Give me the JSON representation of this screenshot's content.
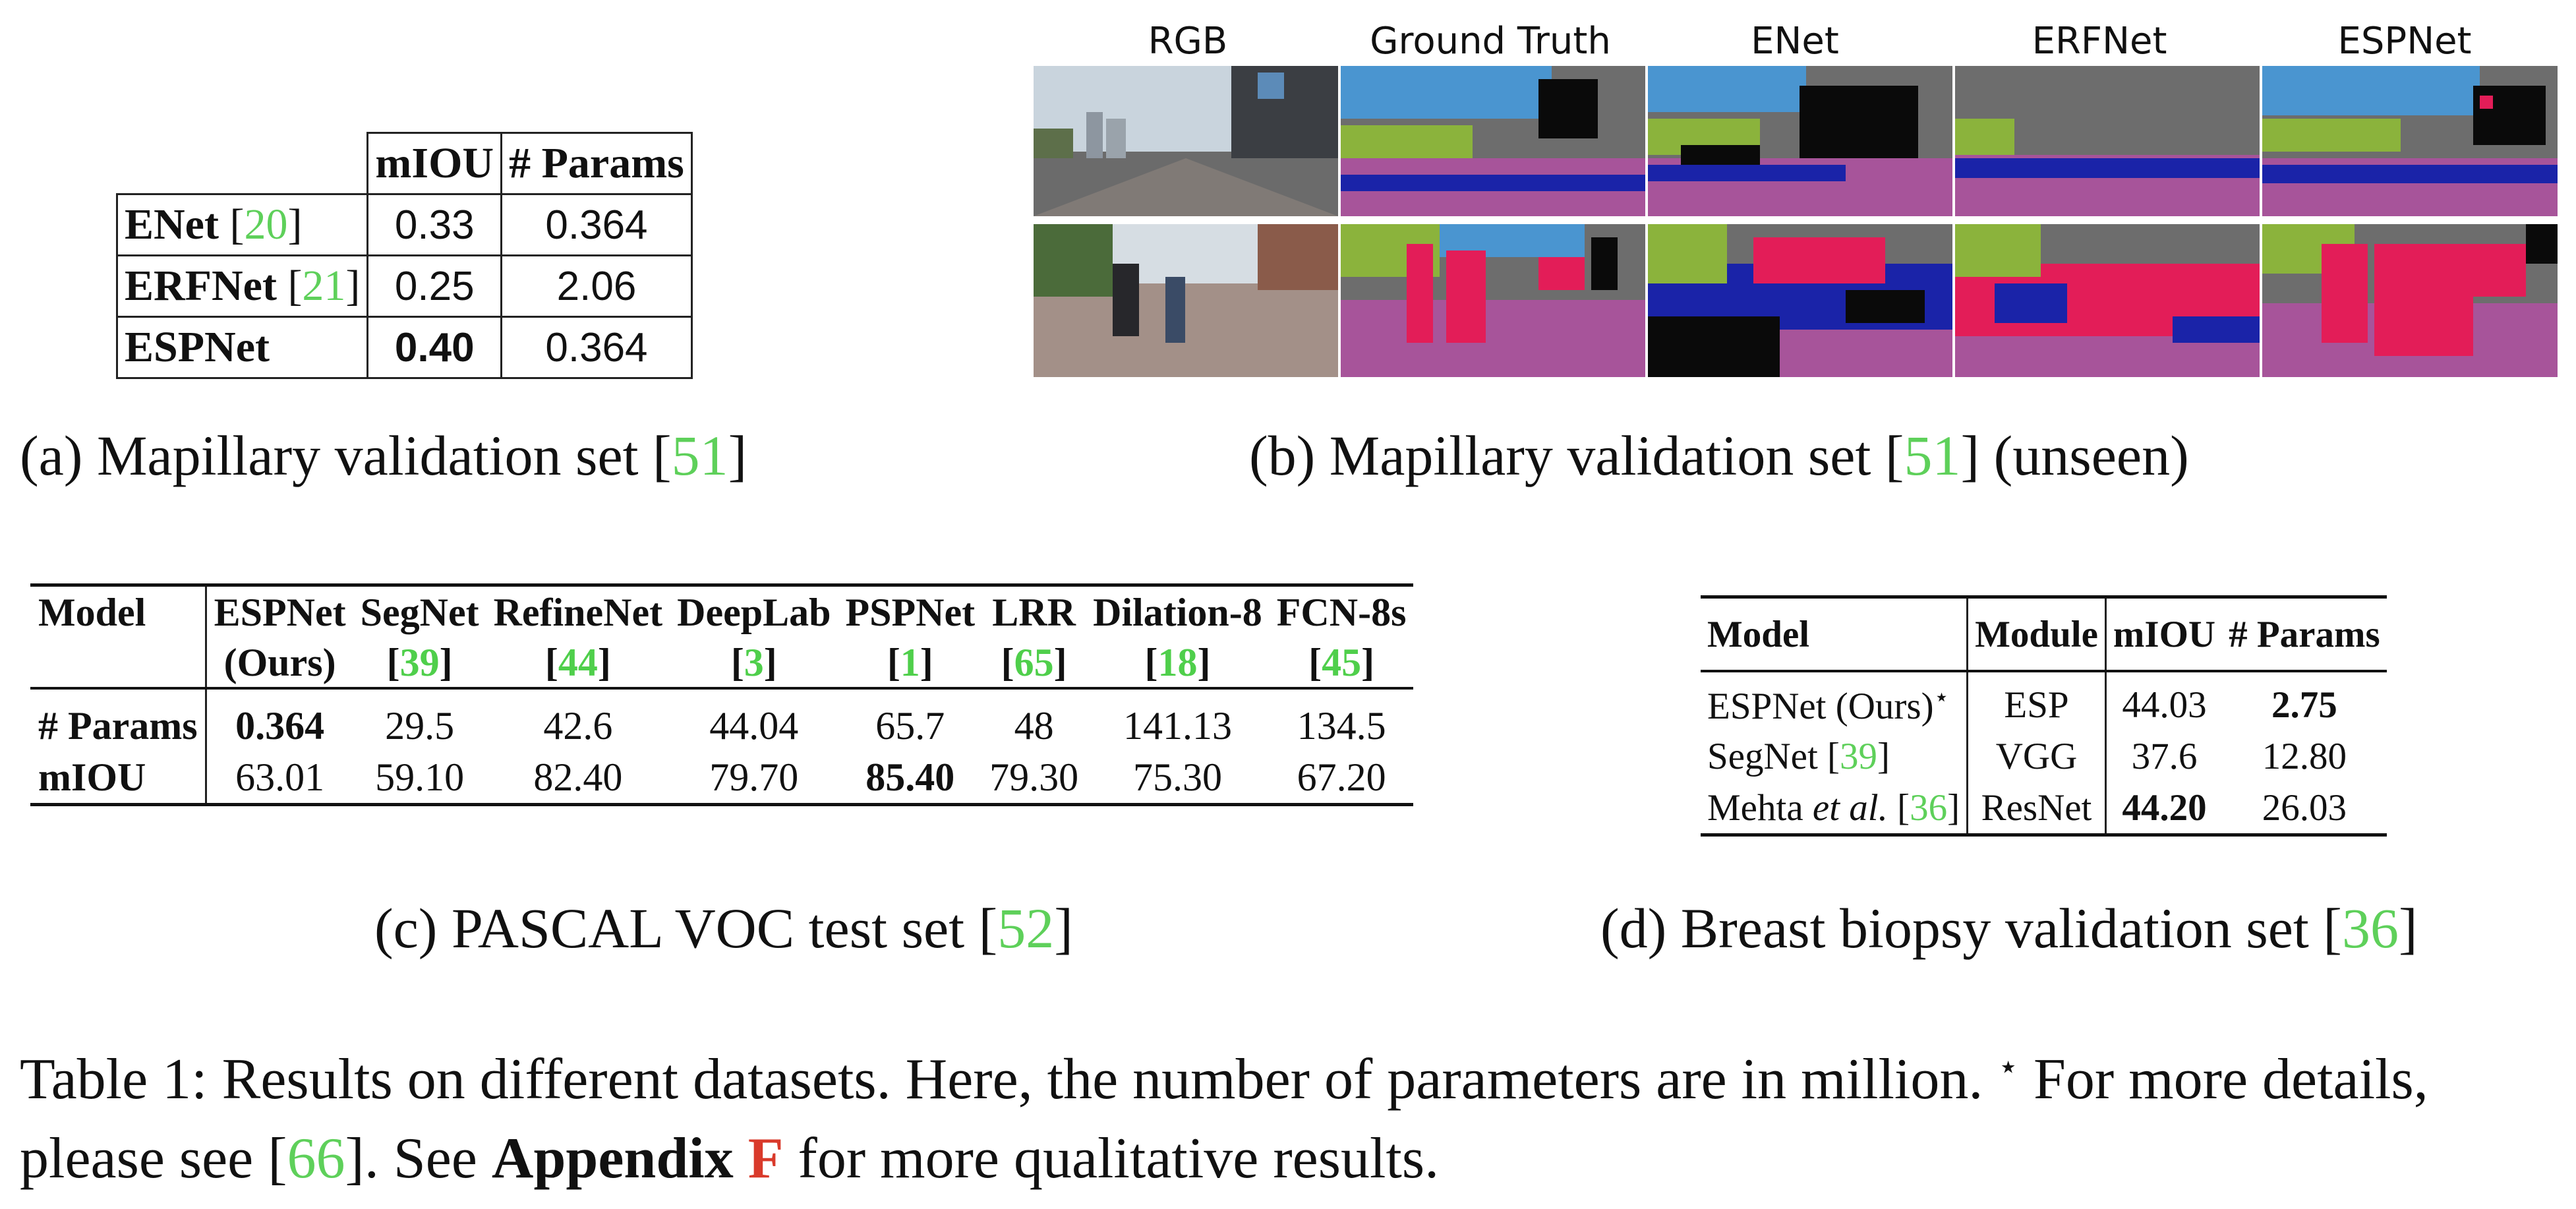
{
  "table_a": {
    "headers": [
      "",
      "mIOU",
      "# Params"
    ],
    "rows": [
      {
        "model": "ENet",
        "ref": "20",
        "miou": "0.33",
        "params": "0.364"
      },
      {
        "model": "ERFNet",
        "ref": "21",
        "miou": "0.25",
        "params": "2.06"
      },
      {
        "model": "ESPNet",
        "ref": "",
        "miou": "0.40",
        "params": "0.364"
      }
    ],
    "caption_prefix": "(a) Mapillary validation set [",
    "caption_ref": "51",
    "caption_suffix": "]"
  },
  "figure_b": {
    "columns": [
      "RGB",
      "Ground Truth",
      "ENet",
      "ERFNet",
      "ESPNet"
    ],
    "caption_prefix": "(b) Mapillary validation set [",
    "caption_ref": "51",
    "caption_suffix": "] (unseen)",
    "colors": {
      "sky": "#4a95d0",
      "building": "#6d6d6d",
      "vegetation": "#8bb33c",
      "road": "#a7549a",
      "car": "#1a23a8",
      "person": "#e31d58",
      "void": "#0a0a0a"
    }
  },
  "table_c": {
    "col_header_label": "Model",
    "models": [
      {
        "name": "ESPNet",
        "sub": "(Ours)",
        "ref": ""
      },
      {
        "name": "SegNet",
        "sub": "",
        "ref": "39"
      },
      {
        "name": "RefineNet",
        "sub": "",
        "ref": "44"
      },
      {
        "name": "DeepLab",
        "sub": "",
        "ref": "3"
      },
      {
        "name": "PSPNet",
        "sub": "",
        "ref": "1"
      },
      {
        "name": "LRR",
        "sub": "",
        "ref": "65"
      },
      {
        "name": "Dilation-8",
        "sub": "",
        "ref": "18"
      },
      {
        "name": "FCN-8s",
        "sub": "",
        "ref": "45"
      }
    ],
    "row_labels": [
      "# Params",
      "mIOU"
    ],
    "params": [
      "0.364",
      "29.5",
      "42.6",
      "44.04",
      "65.7",
      "48",
      "141.13",
      "134.5"
    ],
    "miou": [
      "63.01",
      "59.10",
      "82.40",
      "79.70",
      "85.40",
      "79.30",
      "75.30",
      "67.20"
    ],
    "caption_prefix": "(c) PASCAL VOC test set [",
    "caption_ref": "52",
    "caption_suffix": "]"
  },
  "table_d": {
    "headers": [
      "Model",
      "Module",
      "mIOU",
      "# Params"
    ],
    "rows": [
      {
        "model": "ESPNet (Ours)",
        "star": "⋆",
        "ref": "",
        "module": "ESP",
        "miou": "44.03",
        "params": "2.75"
      },
      {
        "model": "SegNet [",
        "ref": "39",
        "model_end": "]",
        "module": "VGG",
        "miou": "37.6",
        "params": "12.80"
      },
      {
        "model": "Mehta ",
        "italic": "et al.",
        "model_mid": " [",
        "ref": "36",
        "model_end": "]",
        "module": "ResNet",
        "miou": "44.20",
        "params": "26.03"
      }
    ],
    "caption_prefix": "(d) Breast biopsy validation set [",
    "caption_ref": "36",
    "caption_suffix": "]"
  },
  "main_caption": {
    "part1": "Table 1: Results on different datasets. Here, the number of parameters are in million. ",
    "star": "⋆",
    "part2": " For more details, please see [",
    "ref1": "66",
    "part3": "]. See ",
    "bold": "Appendix",
    "space": " ",
    "red": "F",
    "part4": " for more qualitative results."
  }
}
